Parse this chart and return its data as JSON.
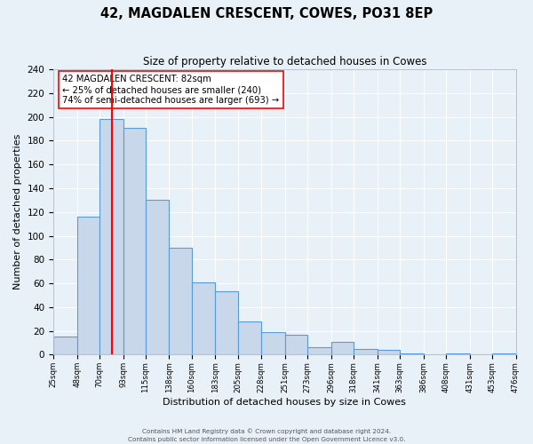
{
  "title": "42, MAGDALEN CRESCENT, COWES, PO31 8EP",
  "subtitle": "Size of property relative to detached houses in Cowes",
  "xlabel": "Distribution of detached houses by size in Cowes",
  "ylabel": "Number of detached properties",
  "bin_edges": [
    25,
    48,
    70,
    93,
    115,
    138,
    160,
    183,
    205,
    228,
    251,
    273,
    296,
    318,
    341,
    363,
    386,
    408,
    431,
    453,
    476
  ],
  "counts": [
    15,
    116,
    198,
    191,
    130,
    90,
    61,
    53,
    28,
    19,
    17,
    6,
    11,
    5,
    4,
    1,
    0,
    1,
    0,
    1
  ],
  "bar_fill": "#c8d8ea",
  "bar_edge": "#5b9bd5",
  "vline_x": 82,
  "vline_color": "red",
  "annotation_lines": [
    "42 MAGDALEN CRESCENT: 82sqm",
    "← 25% of detached houses are smaller (240)",
    "74% of semi-detached houses are larger (693) →"
  ],
  "ylim": [
    0,
    240
  ],
  "yticks": [
    0,
    20,
    40,
    60,
    80,
    100,
    120,
    140,
    160,
    180,
    200,
    220,
    240
  ],
  "bg_color": "#e8f0f8",
  "footer_lines": [
    "Contains HM Land Registry data © Crown copyright and database right 2024.",
    "Contains public sector information licensed under the Open Government Licence v3.0."
  ]
}
